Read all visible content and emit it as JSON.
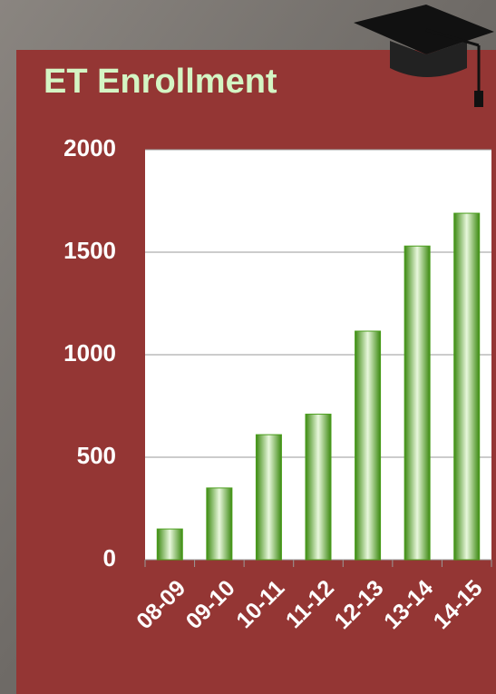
{
  "chart_data": {
    "type": "bar",
    "title": "ET Enrollment",
    "categories": [
      "08-09",
      "09-10",
      "10-11",
      "11-12",
      "12-13",
      "13-14",
      "14-15"
    ],
    "values": [
      150,
      350,
      610,
      710,
      1115,
      1530,
      1690
    ],
    "color": "#4a9e1c",
    "ylim": [
      0,
      2000
    ],
    "yticks": [
      0,
      500,
      1000,
      1500,
      2000
    ],
    "grid": true
  }
}
